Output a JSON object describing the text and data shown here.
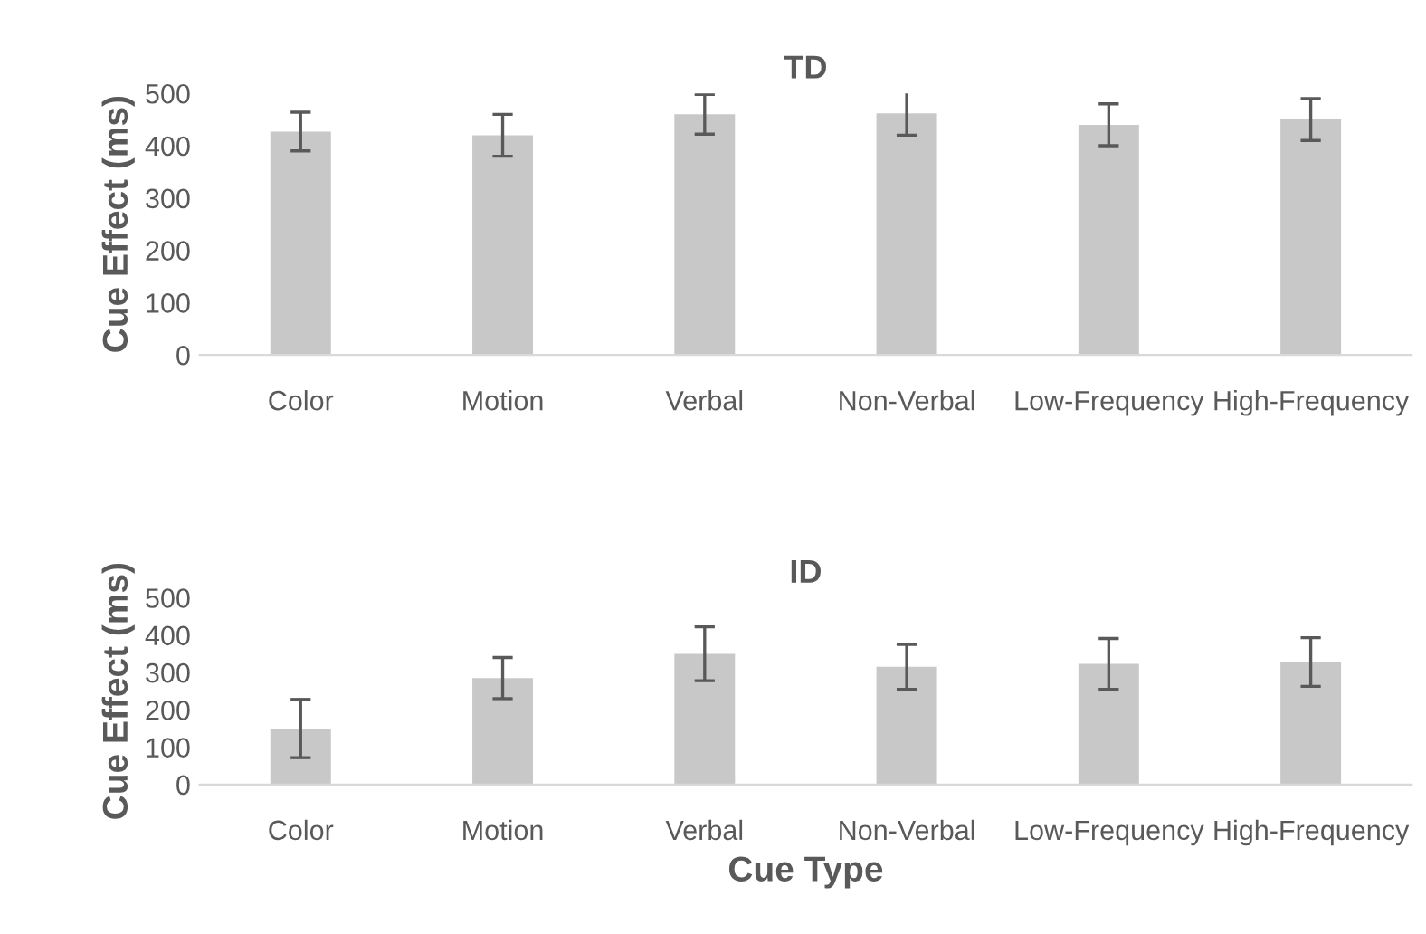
{
  "chart_data": [
    {
      "type": "bar",
      "title": "TD",
      "ylabel": "Cue Effect (ms)",
      "categories": [
        "Color",
        "Motion",
        "Verbal",
        "Non-Verbal",
        "Low-Frequency",
        "High-Frequency"
      ],
      "values": [
        427,
        420,
        460,
        462,
        440,
        450
      ],
      "errors": [
        37,
        40,
        38,
        42,
        40,
        40
      ],
      "color": "#c8c8c8",
      "ylim": [
        0,
        500
      ],
      "yticks": [
        0,
        100,
        200,
        300,
        400,
        500
      ],
      "grid": false,
      "legend": false
    },
    {
      "type": "bar",
      "title": "ID",
      "ylabel": "Cue Effect (ms)",
      "xlabel": "Cue Type",
      "categories": [
        "Color",
        "Motion",
        "Verbal",
        "Non-Verbal",
        "Low-Frequency",
        "High-Frequency"
      ],
      "values": [
        150,
        285,
        350,
        315,
        323,
        328
      ],
      "errors": [
        78,
        55,
        72,
        60,
        68,
        65
      ],
      "color": "#c8c8c8",
      "ylim": [
        0,
        500
      ],
      "yticks": [
        0,
        100,
        200,
        300,
        400,
        500
      ],
      "grid": false,
      "legend": false
    }
  ]
}
